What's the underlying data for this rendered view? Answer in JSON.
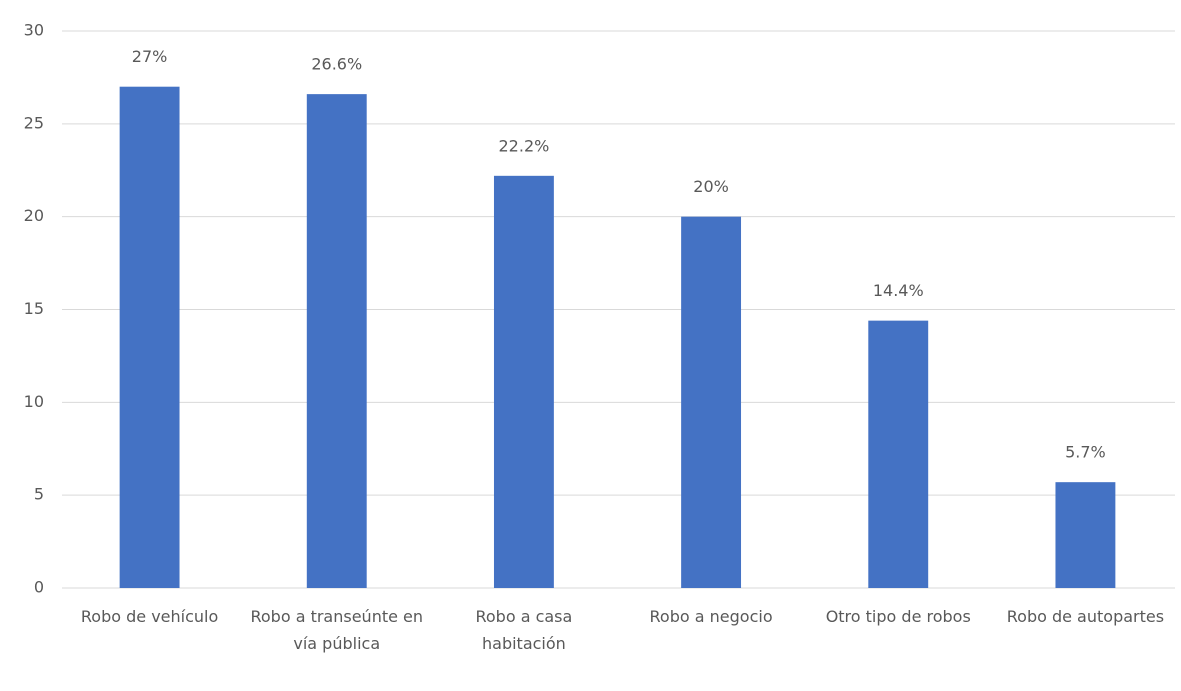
{
  "chart_data": {
    "type": "bar",
    "categories": [
      "Robo de vehículo",
      "Robo a transeúnte en vía pública",
      "Robo a casa habitación",
      "Robo a negocio",
      "Otro tipo de robos",
      "Robo de autopartes"
    ],
    "values": [
      27,
      26.6,
      22.2,
      20,
      14.4,
      5.7
    ],
    "value_labels": [
      "27%",
      "26.6%",
      "22.2%",
      "20%",
      "14.4%",
      "5.7%"
    ],
    "color": "#4472c4",
    "ylim": [
      0,
      30
    ],
    "yticks": [
      0,
      5,
      10,
      15,
      20,
      25,
      30
    ],
    "grid": true
  }
}
